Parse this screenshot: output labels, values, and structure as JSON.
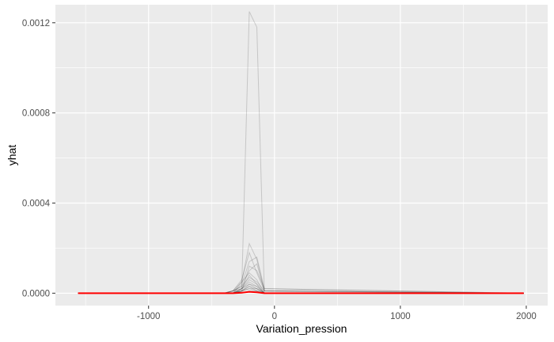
{
  "chart_data": {
    "type": "line",
    "title": "",
    "xlabel": "Variation_pression",
    "ylabel": "yhat",
    "xlim": [
      -1740,
      2170
    ],
    "ylim": [
      -5.5e-05,
      0.00128
    ],
    "x_ticks": [
      -1000,
      0,
      1000,
      2000
    ],
    "x_tick_labels": [
      "-1000",
      "0",
      "1000",
      "2000"
    ],
    "y_ticks": [
      0.0,
      0.0004,
      0.0008,
      0.0012
    ],
    "y_tick_labels": [
      "0.0000",
      "0.0004",
      "0.0008",
      "0.0012"
    ],
    "grid": true,
    "legend": "none",
    "colors": {
      "panel": "#ebebeb",
      "grid": "#ffffff",
      "ice_lines": "#000000",
      "mean_line": "#ff0000"
    },
    "ice_x": [
      -1560,
      -400,
      -330,
      -260,
      -200,
      -140,
      -80,
      1980
    ],
    "ice_series": [
      {
        "values": [
          0,
          0,
          0,
          2e-05,
          0.00125,
          0.00118,
          0,
          0
        ]
      },
      {
        "values": [
          0,
          0,
          1e-05,
          5e-05,
          0.00022,
          0.00015,
          1e-05,
          0
        ]
      },
      {
        "values": [
          0,
          0,
          1e-05,
          6e-05,
          0.00018,
          9e-05,
          1e-05,
          0
        ]
      },
      {
        "values": [
          0,
          0,
          0,
          4e-05,
          0.00014,
          0.00016,
          2e-05,
          0
        ]
      },
      {
        "values": [
          0,
          0,
          1e-05,
          3e-05,
          0.0001,
          0.00013,
          1e-05,
          0
        ]
      },
      {
        "values": [
          0,
          0,
          0,
          5e-05,
          9e-05,
          6e-05,
          0,
          0
        ]
      },
      {
        "values": [
          0,
          0,
          1e-05,
          3e-05,
          7e-05,
          5e-05,
          1e-05,
          0
        ]
      },
      {
        "values": [
          0,
          0,
          0,
          2e-05,
          6e-05,
          4e-05,
          0,
          0
        ]
      },
      {
        "values": [
          0,
          0,
          0,
          2e-05,
          5e-05,
          3e-05,
          0,
          0
        ]
      },
      {
        "values": [
          0,
          0,
          0,
          1e-05,
          4e-05,
          3e-05,
          0,
          0
        ]
      },
      {
        "values": [
          0,
          0,
          0,
          1e-05,
          3e-05,
          2e-05,
          0,
          0
        ]
      },
      {
        "values": [
          0,
          0,
          0,
          1e-05,
          2e-05,
          2e-05,
          0,
          0
        ]
      },
      {
        "values": [
          0,
          0,
          0,
          1e-05,
          2e-05,
          1e-05,
          0,
          0
        ]
      },
      {
        "values": [
          0,
          0,
          0,
          0,
          1e-05,
          1e-05,
          0,
          0
        ]
      },
      {
        "values": [
          0,
          0,
          0,
          1e-05,
          3e-05,
          1e-05,
          0,
          0
        ]
      },
      {
        "values": [
          0,
          0,
          0,
          2e-05,
          4e-05,
          2e-05,
          0,
          0
        ]
      },
      {
        "values": [
          0,
          0,
          1e-05,
          2e-05,
          8e-05,
          4e-05,
          0,
          0
        ]
      },
      {
        "values": [
          0,
          0,
          0,
          1e-05,
          0.00012,
          0.0001,
          2e-05,
          0
        ]
      }
    ],
    "mean_series": {
      "x": [
        -1560,
        -400,
        -330,
        -260,
        -200,
        -140,
        -80,
        1980
      ],
      "values": [
        0,
        0,
        0,
        2e-06,
        6e-06,
        4e-06,
        0,
        0
      ]
    }
  }
}
